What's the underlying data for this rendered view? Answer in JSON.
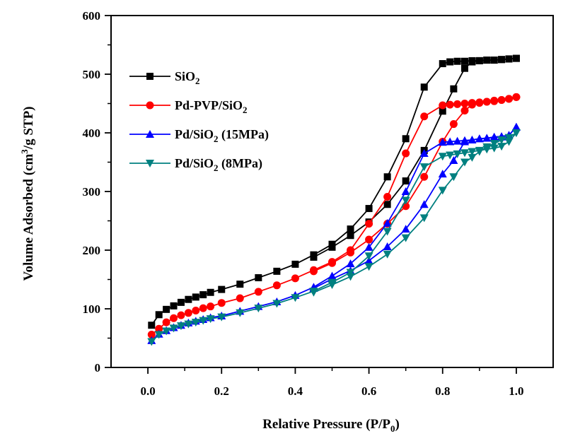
{
  "chart_data": {
    "type": "line",
    "title": "",
    "xlabel": {
      "main": "Relative Pressure (P/P",
      "sub": "0",
      "end": ")"
    },
    "ylabel": {
      "main": "Volume Adsorbed (cm",
      "sup": "3",
      "end": "/g STP)"
    },
    "xlim": [
      -0.1,
      1.1
    ],
    "ylim": [
      0,
      600
    ],
    "xticks": [
      0.0,
      0.2,
      0.4,
      0.6,
      0.8,
      1.0
    ],
    "xtick_labels": [
      "0.0",
      "0.2",
      "0.4",
      "0.6",
      "0.8",
      "1.0"
    ],
    "yticks": [
      0,
      100,
      200,
      300,
      400,
      500,
      600
    ],
    "ytick_labels": [
      "0",
      "100",
      "200",
      "300",
      "400",
      "500",
      "600"
    ],
    "grid": false,
    "legend_position": "upper-left",
    "series": [
      {
        "legend": {
          "main": "SiO",
          "sub": "2",
          "end": ""
        },
        "color": "#000000",
        "marker": "square",
        "adsorption": [
          [
            0.01,
            72
          ],
          [
            0.03,
            90
          ],
          [
            0.05,
            99
          ],
          [
            0.07,
            105
          ],
          [
            0.09,
            111
          ],
          [
            0.11,
            116
          ],
          [
            0.13,
            120
          ],
          [
            0.15,
            124
          ],
          [
            0.17,
            128
          ],
          [
            0.2,
            133
          ],
          [
            0.25,
            142
          ],
          [
            0.3,
            153
          ],
          [
            0.35,
            164
          ],
          [
            0.4,
            176
          ],
          [
            0.45,
            192
          ],
          [
            0.5,
            210
          ],
          [
            0.55,
            236
          ],
          [
            0.6,
            271
          ],
          [
            0.65,
            325
          ],
          [
            0.7,
            390
          ],
          [
            0.75,
            478
          ],
          [
            0.8,
            518
          ],
          [
            0.82,
            521
          ],
          [
            0.84,
            522
          ],
          [
            0.86,
            522
          ],
          [
            0.88,
            523
          ],
          [
            0.9,
            523
          ],
          [
            0.92,
            524
          ],
          [
            0.94,
            524
          ],
          [
            0.96,
            525
          ],
          [
            0.98,
            526
          ],
          [
            1.0,
            527
          ]
        ],
        "desorption": [
          [
            1.0,
            527
          ],
          [
            0.98,
            526
          ],
          [
            0.96,
            525
          ],
          [
            0.94,
            524
          ],
          [
            0.92,
            524
          ],
          [
            0.9,
            523
          ],
          [
            0.88,
            521
          ],
          [
            0.86,
            510
          ],
          [
            0.83,
            475
          ],
          [
            0.8,
            437
          ],
          [
            0.75,
            370
          ],
          [
            0.7,
            318
          ],
          [
            0.65,
            278
          ],
          [
            0.6,
            248
          ],
          [
            0.55,
            225
          ],
          [
            0.5,
            205
          ],
          [
            0.45,
            188
          ]
        ]
      },
      {
        "legend": {
          "main": "Pd-PVP/SiO",
          "sub": "2",
          "end": ""
        },
        "color": "#ff0000",
        "marker": "circle",
        "adsorption": [
          [
            0.01,
            56
          ],
          [
            0.03,
            66
          ],
          [
            0.05,
            77
          ],
          [
            0.07,
            84
          ],
          [
            0.09,
            89
          ],
          [
            0.11,
            93
          ],
          [
            0.13,
            97
          ],
          [
            0.15,
            101
          ],
          [
            0.17,
            104
          ],
          [
            0.2,
            110
          ],
          [
            0.25,
            118
          ],
          [
            0.3,
            129
          ],
          [
            0.35,
            140
          ],
          [
            0.4,
            152
          ],
          [
            0.45,
            166
          ],
          [
            0.5,
            180
          ],
          [
            0.55,
            200
          ],
          [
            0.6,
            245
          ],
          [
            0.65,
            291
          ],
          [
            0.7,
            365
          ],
          [
            0.75,
            428
          ],
          [
            0.8,
            447
          ],
          [
            0.82,
            448
          ],
          [
            0.84,
            449
          ],
          [
            0.86,
            450
          ],
          [
            0.88,
            451
          ],
          [
            0.9,
            452
          ],
          [
            0.92,
            453
          ],
          [
            0.94,
            454
          ],
          [
            0.96,
            456
          ],
          [
            0.98,
            458
          ],
          [
            1.0,
            461
          ]
        ],
        "desorption": [
          [
            1.0,
            461
          ],
          [
            0.98,
            458
          ],
          [
            0.96,
            456
          ],
          [
            0.94,
            455
          ],
          [
            0.92,
            453
          ],
          [
            0.9,
            451
          ],
          [
            0.88,
            448
          ],
          [
            0.86,
            438
          ],
          [
            0.83,
            415
          ],
          [
            0.8,
            385
          ],
          [
            0.75,
            325
          ],
          [
            0.7,
            275
          ],
          [
            0.65,
            245
          ],
          [
            0.6,
            218
          ],
          [
            0.55,
            196
          ],
          [
            0.5,
            178
          ],
          [
            0.45,
            164
          ]
        ]
      },
      {
        "legend": {
          "main": "Pd/SiO",
          "sub": "2",
          "end": " (15MPa)"
        },
        "color": "#0000ff",
        "marker": "triangle-up",
        "adsorption": [
          [
            0.01,
            46
          ],
          [
            0.03,
            57
          ],
          [
            0.05,
            63
          ],
          [
            0.07,
            68
          ],
          [
            0.09,
            72
          ],
          [
            0.11,
            76
          ],
          [
            0.13,
            79
          ],
          [
            0.15,
            82
          ],
          [
            0.17,
            85
          ],
          [
            0.2,
            88
          ],
          [
            0.25,
            96
          ],
          [
            0.3,
            104
          ],
          [
            0.35,
            112
          ],
          [
            0.4,
            123
          ],
          [
            0.45,
            137
          ],
          [
            0.5,
            156
          ],
          [
            0.55,
            177
          ],
          [
            0.6,
            205
          ],
          [
            0.65,
            246
          ],
          [
            0.7,
            300
          ],
          [
            0.75,
            365
          ],
          [
            0.8,
            384
          ],
          [
            0.82,
            385
          ],
          [
            0.84,
            386
          ],
          [
            0.86,
            387
          ],
          [
            0.88,
            388
          ],
          [
            0.9,
            390
          ],
          [
            0.92,
            391
          ],
          [
            0.94,
            392
          ],
          [
            0.96,
            393
          ],
          [
            0.98,
            396
          ],
          [
            1.0,
            410
          ]
        ],
        "desorption": [
          [
            1.0,
            410
          ],
          [
            0.98,
            396
          ],
          [
            0.96,
            394
          ],
          [
            0.94,
            393
          ],
          [
            0.92,
            391
          ],
          [
            0.9,
            390
          ],
          [
            0.88,
            388
          ],
          [
            0.86,
            385
          ],
          [
            0.83,
            353
          ],
          [
            0.8,
            330
          ],
          [
            0.75,
            278
          ],
          [
            0.7,
            236
          ],
          [
            0.65,
            206
          ],
          [
            0.6,
            182
          ],
          [
            0.55,
            165
          ],
          [
            0.5,
            151
          ],
          [
            0.45,
            135
          ]
        ]
      },
      {
        "legend": {
          "main": "Pd/SiO",
          "sub": "2",
          "end": " (8MPa)"
        },
        "color": "#008080",
        "marker": "triangle-down",
        "adsorption": [
          [
            0.01,
            44
          ],
          [
            0.03,
            56
          ],
          [
            0.05,
            62
          ],
          [
            0.07,
            67
          ],
          [
            0.09,
            71
          ],
          [
            0.11,
            74
          ],
          [
            0.13,
            77
          ],
          [
            0.15,
            80
          ],
          [
            0.17,
            83
          ],
          [
            0.2,
            86
          ],
          [
            0.25,
            93
          ],
          [
            0.3,
            101
          ],
          [
            0.35,
            109
          ],
          [
            0.4,
            119
          ],
          [
            0.45,
            130
          ],
          [
            0.5,
            145
          ],
          [
            0.55,
            162
          ],
          [
            0.6,
            190
          ],
          [
            0.65,
            232
          ],
          [
            0.7,
            285
          ],
          [
            0.75,
            342
          ],
          [
            0.8,
            360
          ],
          [
            0.82,
            362
          ],
          [
            0.84,
            364
          ],
          [
            0.86,
            366
          ],
          [
            0.88,
            368
          ],
          [
            0.9,
            370
          ],
          [
            0.92,
            372
          ],
          [
            0.94,
            374
          ],
          [
            0.96,
            377
          ],
          [
            0.98,
            385
          ],
          [
            1.0,
            400
          ]
        ],
        "desorption": [
          [
            1.0,
            400
          ],
          [
            0.98,
            392
          ],
          [
            0.96,
            388
          ],
          [
            0.94,
            382
          ],
          [
            0.92,
            376
          ],
          [
            0.9,
            368
          ],
          [
            0.88,
            358
          ],
          [
            0.86,
            350
          ],
          [
            0.83,
            325
          ],
          [
            0.8,
            302
          ],
          [
            0.75,
            255
          ],
          [
            0.7,
            221
          ],
          [
            0.65,
            193
          ],
          [
            0.6,
            172
          ],
          [
            0.55,
            155
          ],
          [
            0.5,
            141
          ],
          [
            0.45,
            128
          ]
        ]
      }
    ]
  }
}
